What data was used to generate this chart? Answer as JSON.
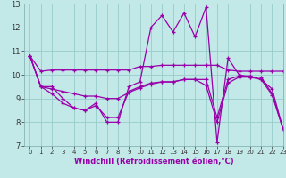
{
  "xlabel": "Windchill (Refroidissement éolien,°C)",
  "xlim": [
    -0.5,
    23
  ],
  "ylim": [
    7,
    13
  ],
  "yticks": [
    7,
    8,
    9,
    10,
    11,
    12,
    13
  ],
  "xticks": [
    0,
    1,
    2,
    3,
    4,
    5,
    6,
    7,
    8,
    9,
    10,
    11,
    12,
    13,
    14,
    15,
    16,
    17,
    18,
    19,
    20,
    21,
    22,
    23
  ],
  "background_color": "#c2e8e8",
  "line_color": "#9900aa",
  "grid_color": "#99cccc",
  "series": [
    [
      10.8,
      10.15,
      10.2,
      10.2,
      10.2,
      10.2,
      10.2,
      10.2,
      10.2,
      10.2,
      10.35,
      10.35,
      10.4,
      10.4,
      10.4,
      10.4,
      10.4,
      10.4,
      10.2,
      10.15,
      10.15,
      10.15,
      10.15,
      10.15
    ],
    [
      10.8,
      9.5,
      9.5,
      9.0,
      8.6,
      8.5,
      8.8,
      8.0,
      8.0,
      9.5,
      9.7,
      12.0,
      12.5,
      11.8,
      12.6,
      11.6,
      12.85,
      7.15,
      10.7,
      10.0,
      9.9,
      9.9,
      9.2,
      7.7
    ],
    [
      10.8,
      9.5,
      9.4,
      9.3,
      9.2,
      9.1,
      9.1,
      9.0,
      9.0,
      9.25,
      9.45,
      9.6,
      9.7,
      9.7,
      9.8,
      9.8,
      9.8,
      8.2,
      9.8,
      9.95,
      9.95,
      9.8,
      9.4,
      7.7
    ],
    [
      10.8,
      9.5,
      9.2,
      8.8,
      8.6,
      8.5,
      8.7,
      8.2,
      8.2,
      9.3,
      9.5,
      9.65,
      9.7,
      9.7,
      9.8,
      9.8,
      9.55,
      8.0,
      9.65,
      9.9,
      9.9,
      9.8,
      9.15,
      7.7
    ]
  ]
}
